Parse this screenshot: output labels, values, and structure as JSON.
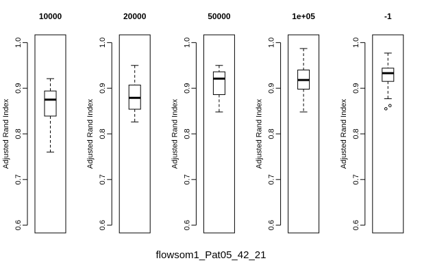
{
  "figure_title": "flowsom1_Pat05_42_21",
  "chart_data": [
    {
      "type": "box",
      "title": "10000",
      "ylabel": "Adjusted Rand Index",
      "ylim": [
        0.583,
        1.017
      ],
      "yticks": [
        0.6,
        0.7,
        0.8,
        0.9,
        1.0
      ],
      "ytick_labels": [
        "0.6",
        "0.7",
        "0.8",
        "0.9",
        "1.0"
      ],
      "box": {
        "whisker_low": 0.76,
        "q1": 0.839,
        "median": 0.875,
        "q3": 0.894,
        "whisker_high": 0.921
      },
      "outliers": []
    },
    {
      "type": "box",
      "title": "20000",
      "ylabel": "Adjusted Rand Index",
      "ylim": [
        0.583,
        1.017
      ],
      "yticks": [
        0.6,
        0.7,
        0.8,
        0.9,
        1.0
      ],
      "ytick_labels": [
        "0.6",
        "0.7",
        "0.8",
        "0.9",
        "1.0"
      ],
      "box": {
        "whisker_low": 0.826,
        "q1": 0.854,
        "median": 0.879,
        "q3": 0.907,
        "whisker_high": 0.95
      },
      "outliers": []
    },
    {
      "type": "box",
      "title": "50000",
      "ylabel": "Adjusted Rand Index",
      "ylim": [
        0.583,
        1.017
      ],
      "yticks": [
        0.6,
        0.7,
        0.8,
        0.9,
        1.0
      ],
      "ytick_labels": [
        "0.6",
        "0.7",
        "0.8",
        "0.9",
        "1.0"
      ],
      "box": {
        "whisker_low": 0.848,
        "q1": 0.886,
        "median": 0.921,
        "q3": 0.936,
        "whisker_high": 0.95
      },
      "outliers": []
    },
    {
      "type": "box",
      "title": "1e+05",
      "ylabel": "Adjusted Rand Index",
      "ylim": [
        0.583,
        1.017
      ],
      "yticks": [
        0.6,
        0.7,
        0.8,
        0.9,
        1.0
      ],
      "ytick_labels": [
        "0.6",
        "0.7",
        "0.8",
        "0.9",
        "1.0"
      ],
      "box": {
        "whisker_low": 0.848,
        "q1": 0.898,
        "median": 0.918,
        "q3": 0.94,
        "whisker_high": 0.987
      },
      "outliers": []
    },
    {
      "type": "box",
      "title": "-1",
      "ylabel": "Adjusted Rand Index",
      "ylim": [
        0.583,
        1.017
      ],
      "yticks": [
        0.6,
        0.7,
        0.8,
        0.9,
        1.0
      ],
      "ytick_labels": [
        "0.6",
        "0.7",
        "0.8",
        "0.9",
        "1.0"
      ],
      "box": {
        "whisker_low": 0.877,
        "q1": 0.915,
        "median": 0.933,
        "q3": 0.944,
        "whisker_high": 0.977
      },
      "outliers": [
        0.855,
        0.862
      ]
    }
  ]
}
